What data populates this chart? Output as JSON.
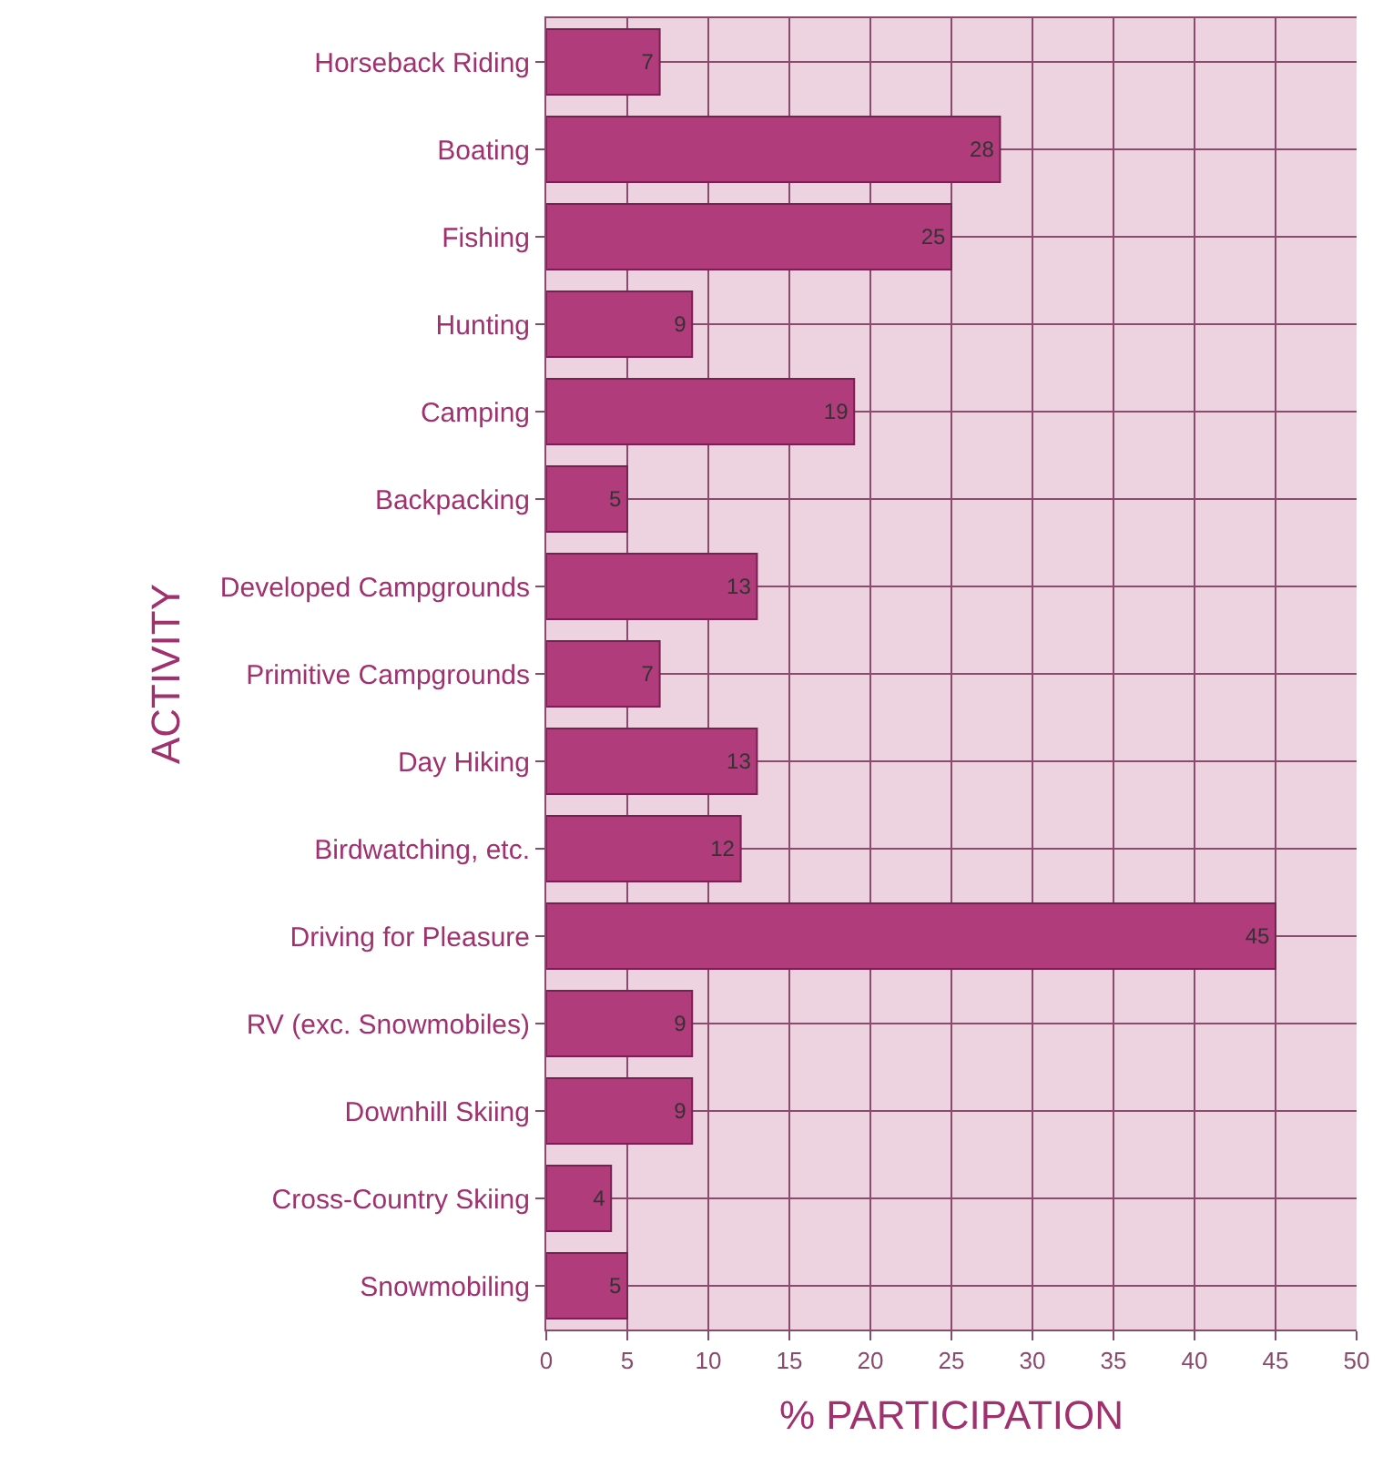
{
  "chart_data": {
    "type": "bar",
    "orientation": "horizontal",
    "xlabel": "% PARTICIPATION",
    "ylabel": "ACTIVITY",
    "categories": [
      "Horseback Riding",
      "Boating",
      "Fishing",
      "Hunting",
      "Camping",
      "Backpacking",
      "Developed Campgrounds",
      "Primitive Campgrounds",
      "Day Hiking",
      "Birdwatching, etc.",
      "Driving for Pleasure",
      "RV (exc. Snowmobiles)",
      "Downhill Skiing",
      "Cross-Country Skiing",
      "Snowmobiling"
    ],
    "values": [
      7,
      28,
      25,
      9,
      19,
      5,
      13,
      7,
      13,
      12,
      45,
      9,
      9,
      4,
      5
    ],
    "color": "#b03c7c",
    "xlim": [
      0,
      50
    ],
    "xticks": [
      0,
      5,
      10,
      15,
      20,
      25,
      30,
      35,
      40,
      45,
      50
    ],
    "grid": true,
    "data_labels": true
  }
}
